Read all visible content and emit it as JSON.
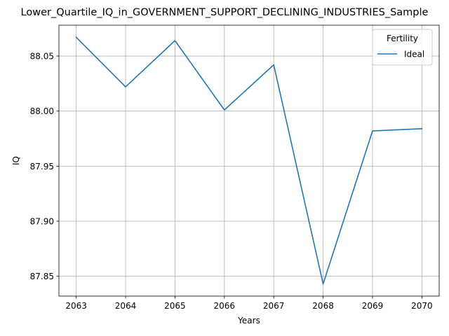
{
  "chart_data": {
    "type": "line",
    "title": "Lower_Quartile_IQ_in_GOVERNMENT_SUPPORT_DECLINING_INDUSTRIES_Sample",
    "xlabel": "Years",
    "ylabel": "IQ",
    "x": [
      2063,
      2064,
      2065,
      2066,
      2067,
      2068,
      2069,
      2070
    ],
    "series": [
      {
        "name": "Ideal",
        "color": "#1f77b4",
        "values": [
          88.067,
          88.022,
          88.064,
          88.001,
          88.042,
          87.843,
          87.982,
          87.984
        ]
      }
    ],
    "xticks": [
      "2063",
      "2064",
      "2065",
      "2066",
      "2067",
      "2068",
      "2069",
      "2070"
    ],
    "yticks": [
      "87.85",
      "87.90",
      "87.95",
      "88.00",
      "88.05"
    ],
    "xlim": [
      2062.65,
      2070.35
    ],
    "ylim": [
      87.832,
      88.078
    ],
    "grid": true,
    "legend": {
      "title": "Fertility",
      "placement": "upper right"
    }
  }
}
